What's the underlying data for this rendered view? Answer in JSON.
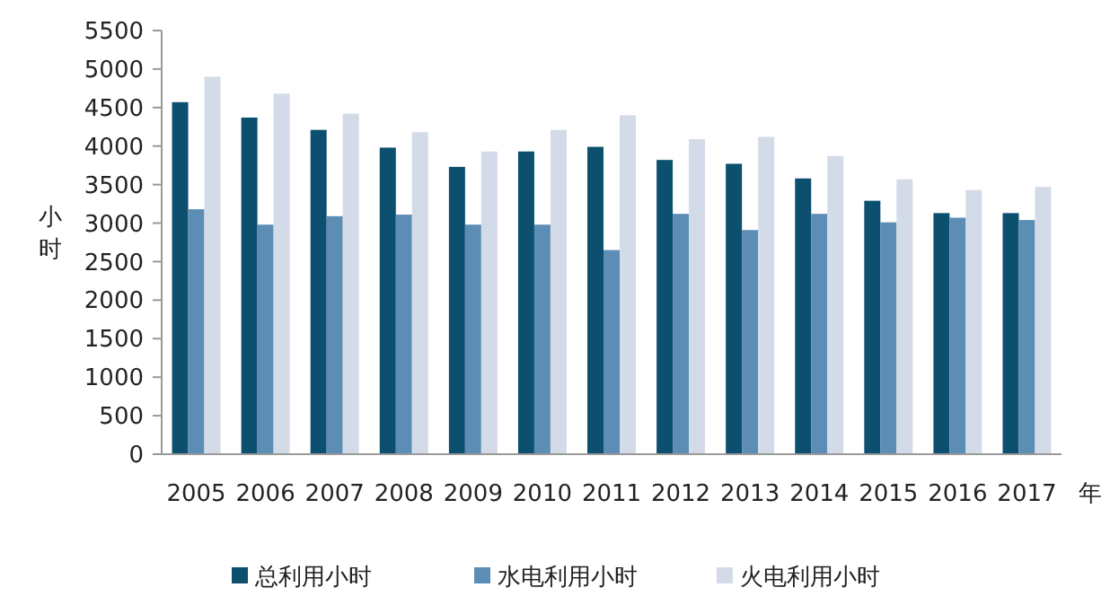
{
  "chart_data": {
    "type": "bar",
    "xlabel": "年",
    "ylabel": "小时",
    "categories": [
      "2005",
      "2006",
      "2007",
      "2008",
      "2009",
      "2010",
      "2011",
      "2012",
      "2013",
      "2014",
      "2015",
      "2016",
      "2017"
    ],
    "series": [
      {
        "name": "总利用小时",
        "color": "#0d4f6e",
        "values": [
          4570,
          4370,
          4210,
          3980,
          3730,
          3930,
          3990,
          3820,
          3770,
          3580,
          3290,
          3130,
          3130
        ]
      },
      {
        "name": "水电利用小时",
        "color": "#5b8db5",
        "values": [
          3180,
          2980,
          3090,
          3110,
          2980,
          2980,
          2650,
          3120,
          2910,
          3120,
          3010,
          3070,
          3040
        ]
      },
      {
        "name": "火电利用小时",
        "color": "#d3dbe8",
        "values": [
          4900,
          4680,
          4420,
          4180,
          3930,
          4210,
          4400,
          4090,
          4120,
          3870,
          3570,
          3430,
          3470
        ]
      }
    ],
    "ylim": [
      0,
      5500
    ],
    "yticks": [
      0,
      500,
      1000,
      1500,
      2000,
      2500,
      3000,
      3500,
      4000,
      4500,
      5000,
      5500
    ],
    "grid": false,
    "legend": "bottom"
  }
}
